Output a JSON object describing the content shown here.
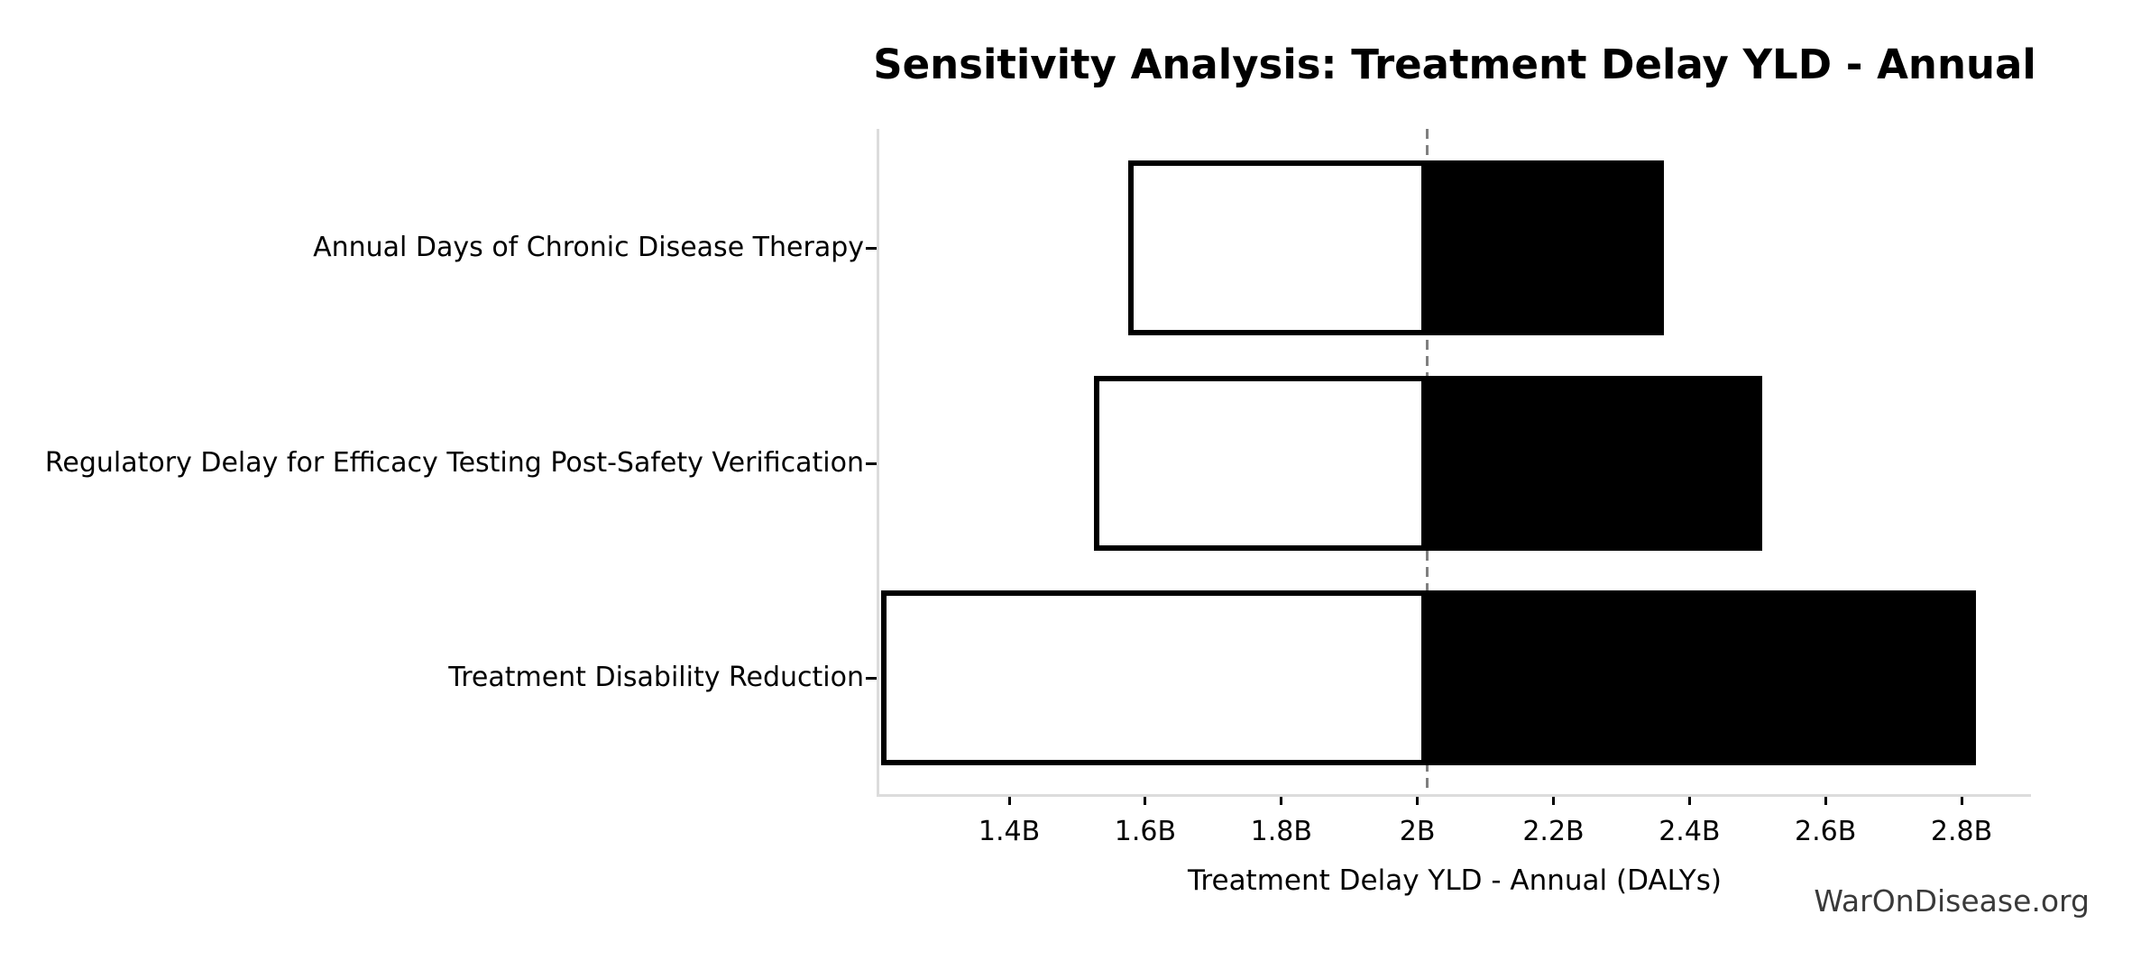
{
  "watermark": "WarOnDisease.org",
  "chart_data": {
    "type": "bar",
    "subtype": "tornado-sensitivity",
    "orientation": "horizontal",
    "title": "Sensitivity Analysis: Treatment Delay YLD - Annual",
    "xlabel": "Treatment Delay YLD - Annual (DALYs)",
    "ylabel": "",
    "unit": "billions of DALYs",
    "grid": false,
    "legend": "none",
    "baseline": 2.014,
    "xlim": [
      1.209,
      2.902
    ],
    "categories": [
      "Annual Days of Chronic Disease Therapy",
      "Regulatory Delay for Efficacy Testing Post-Safety Verification",
      "Treatment Disability Reduction"
    ],
    "rows": [
      {
        "label": "Annual Days of Chronic Disease Therapy",
        "low": 1.575,
        "high": 2.362
      },
      {
        "label": "Regulatory Delay for Efficacy Testing Post-Safety Verification",
        "low": 1.524,
        "high": 2.507
      },
      {
        "label": "Treatment Disability Reduction",
        "low": 1.212,
        "high": 2.821
      }
    ],
    "series": [
      {
        "name": "low",
        "values": [
          1.575,
          1.524,
          1.212
        ]
      },
      {
        "name": "high",
        "values": [
          2.362,
          2.507,
          2.821
        ]
      }
    ],
    "xticks": [
      {
        "value": 1.4,
        "label": "1.4B"
      },
      {
        "value": 1.6,
        "label": "1.6B"
      },
      {
        "value": 1.8,
        "label": "1.8B"
      },
      {
        "value": 2.0,
        "label": "2B"
      },
      {
        "value": 2.2,
        "label": "2.2B"
      },
      {
        "value": 2.4,
        "label": "2.4B"
      },
      {
        "value": 2.6,
        "label": "2.6B"
      },
      {
        "value": 2.8,
        "label": "2.8B"
      }
    ],
    "colors": {
      "low_fill": "#ffffff",
      "high_fill": "#000000",
      "bar_edge": "#000000",
      "baseline_line": "#7f7f7f",
      "spine": "#dcdcdc",
      "tick": "#000000",
      "text": "#000000",
      "watermark": "#3a3a3a",
      "background": "#ffffff"
    }
  }
}
